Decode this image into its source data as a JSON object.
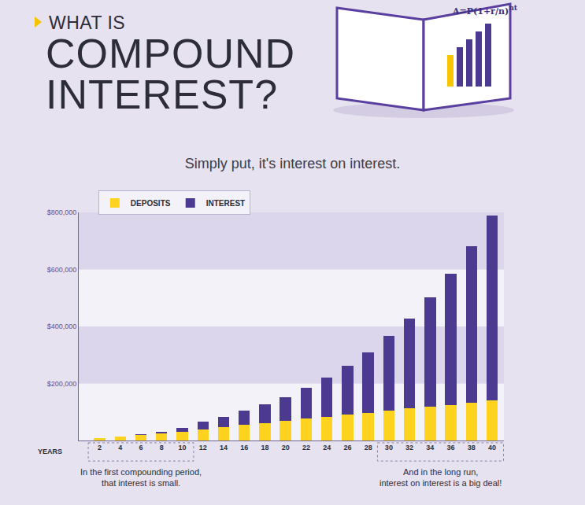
{
  "chart_data": {
    "type": "bar",
    "stacked": true,
    "overtitle": "WHAT IS",
    "title": "COMPOUND INTEREST?",
    "subtitle": "Simply put, it's interest on interest.",
    "formula": {
      "base": "A=P(1+r/n)",
      "exponent": "nt"
    },
    "x_label": "YEARS",
    "categories": [
      "2",
      "4",
      "6",
      "8",
      "10",
      "12",
      "14",
      "16",
      "18",
      "20",
      "22",
      "24",
      "26",
      "28",
      "30",
      "32",
      "34",
      "36",
      "38",
      "40"
    ],
    "series": [
      {
        "name": "DEPOSITS",
        "color": "#fdd31f",
        "values": [
          7000,
          13000,
          18000,
          24000,
          30000,
          40000,
          48000,
          55000,
          62000,
          70000,
          76000,
          84000,
          90000,
          97000,
          105000,
          113000,
          118000,
          125000,
          133000,
          140000
        ]
      },
      {
        "name": "INTEREST",
        "color": "#4b3a8f",
        "values": [
          1000,
          2000,
          4000,
          6000,
          15000,
          25000,
          34000,
          50000,
          65000,
          83000,
          109000,
          138000,
          172000,
          213000,
          263000,
          315000,
          384000,
          460000,
          549000,
          650000
        ]
      }
    ],
    "ylim": [
      0,
      800000
    ],
    "yticks": [
      {
        "value": 200000,
        "label": "$200,000"
      },
      {
        "value": 400000,
        "label": "$400,000"
      },
      {
        "value": 600000,
        "label": "$600,000"
      },
      {
        "value": 800000,
        "label": "$800,000"
      }
    ],
    "grid": true,
    "legend": "top-left",
    "annotations": [
      {
        "lines": [
          "In the first compounding period,",
          "that interest is small."
        ],
        "from": "2",
        "to": "10"
      },
      {
        "lines": [
          "And in the long run,",
          "interest on interest is a big deal!"
        ],
        "from": "30",
        "to": "40"
      }
    ]
  }
}
